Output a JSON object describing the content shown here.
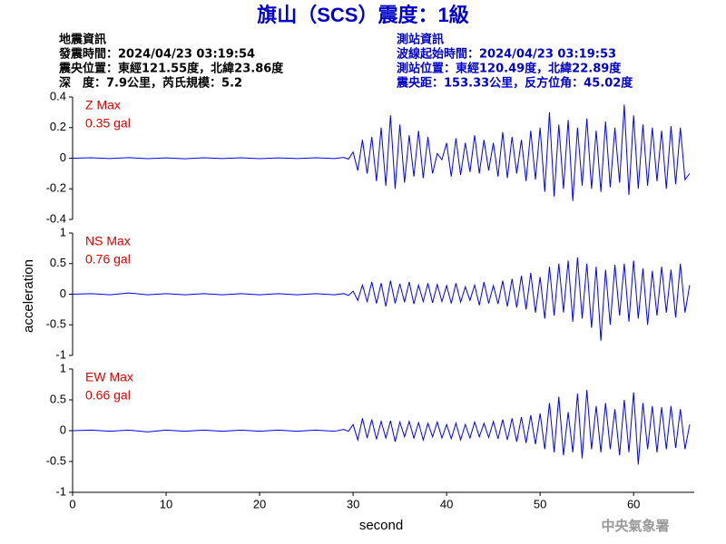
{
  "header": {
    "title": "旗山（SCS）震度：1級",
    "left": [
      "地震資訊",
      "發震時間：2024/04/23 03:19:54",
      "震央位置：東經121.55度，北緯23.86度",
      "深　度：7.9公里，芮氏規模：5.2"
    ],
    "right": [
      "測站資訊",
      "波線起始時間：2024/04/23 03:19:53",
      "測站位置：東經120.49度，北緯22.89度",
      "震央距：153.33公里，反方位角：45.02度"
    ]
  },
  "footer": "中央氣象署",
  "chart_data": [
    {
      "type": "line",
      "annotations": [
        "Z Max",
        "0.35 gal"
      ],
      "color": "#0000ff",
      "xlim": [
        0,
        66
      ],
      "ylim": [
        -0.4,
        0.4
      ],
      "yticks": [
        -0.4,
        -0.2,
        0,
        0.2,
        0.4
      ],
      "x": [
        0,
        2,
        4,
        6,
        8,
        10,
        12,
        14,
        16,
        18,
        20,
        22,
        24,
        26,
        28,
        29,
        29.5,
        30,
        30.5,
        31,
        31.5,
        32,
        32.5,
        33,
        33.5,
        34,
        34.5,
        35,
        35.5,
        36,
        36.5,
        37,
        37.5,
        38,
        38.5,
        39,
        39.5,
        40,
        40.5,
        41,
        41.5,
        42,
        42.5,
        43,
        43.5,
        44,
        44.5,
        45,
        45.5,
        46,
        46.5,
        47,
        47.5,
        48,
        48.5,
        49,
        49.5,
        50,
        50.5,
        51,
        51.5,
        52,
        52.5,
        53,
        53.5,
        54,
        54.5,
        55,
        55.5,
        56,
        56.5,
        57,
        57.5,
        58,
        58.5,
        59,
        59.5,
        60,
        60.5,
        61,
        61.5,
        62,
        62.5,
        63,
        63.5,
        64,
        64.5,
        65,
        65.5,
        66
      ],
      "values": [
        0,
        0.003,
        -0.002,
        0.004,
        -0.003,
        0.002,
        -0.004,
        0.003,
        -0.002,
        0.003,
        -0.003,
        0.002,
        -0.002,
        0.003,
        -0.002,
        0.005,
        -0.006,
        0.04,
        -0.08,
        0.12,
        -0.1,
        0.14,
        -0.15,
        0.2,
        -0.18,
        0.28,
        -0.2,
        0.22,
        -0.16,
        0.15,
        -0.12,
        0.18,
        -0.13,
        0.14,
        -0.1,
        0.03,
        -0.01,
        0.1,
        -0.12,
        0.13,
        -0.11,
        0.1,
        -0.09,
        0.15,
        -0.1,
        0.12,
        -0.08,
        0.1,
        -0.12,
        0.17,
        -0.13,
        0.14,
        -0.1,
        0.12,
        -0.15,
        0.18,
        -0.14,
        0.2,
        -0.22,
        0.3,
        -0.25,
        0.22,
        -0.2,
        0.25,
        -0.28,
        0.2,
        -0.18,
        0.26,
        -0.2,
        0.18,
        -0.22,
        0.24,
        -0.19,
        0.2,
        -0.16,
        0.35,
        -0.24,
        0.28,
        -0.2,
        0.22,
        -0.18,
        0.2,
        -0.15,
        0.18,
        -0.2,
        0.21,
        -0.17,
        0.2,
        -0.14,
        -0.1
      ]
    },
    {
      "type": "line",
      "annotations": [
        "NS Max",
        "0.76 gal"
      ],
      "color": "#0000ff",
      "ylabel": "acceleration",
      "xlim": [
        0,
        66
      ],
      "ylim": [
        -1,
        1
      ],
      "yticks": [
        -1,
        -0.5,
        0,
        0.5,
        1
      ],
      "x": [
        0,
        2,
        4,
        6,
        8,
        10,
        12,
        14,
        16,
        18,
        20,
        22,
        24,
        26,
        28,
        29,
        29.5,
        30,
        30.5,
        31,
        31.5,
        32,
        32.5,
        33,
        33.5,
        34,
        34.5,
        35,
        35.5,
        36,
        36.5,
        37,
        37.5,
        38,
        38.5,
        39,
        39.5,
        40,
        40.5,
        41,
        41.5,
        42,
        42.5,
        43,
        43.5,
        44,
        44.5,
        45,
        45.5,
        46,
        46.5,
        47,
        47.5,
        48,
        48.5,
        49,
        49.5,
        50,
        50.5,
        51,
        51.5,
        52,
        52.5,
        53,
        53.5,
        54,
        54.5,
        55,
        55.5,
        56,
        56.5,
        57,
        57.5,
        58,
        58.5,
        59,
        59.5,
        60,
        60.5,
        61,
        61.5,
        62,
        62.5,
        63,
        63.5,
        64,
        64.5,
        65,
        65.5,
        66
      ],
      "values": [
        0,
        0.01,
        -0.01,
        0.02,
        -0.01,
        0.01,
        -0.01,
        0.01,
        -0.01,
        0.01,
        -0.01,
        0.01,
        -0.01,
        0.01,
        -0.01,
        0.01,
        -0.02,
        0.05,
        -0.1,
        0.15,
        -0.12,
        0.2,
        -0.15,
        0.18,
        -0.2,
        0.22,
        -0.15,
        0.17,
        -0.13,
        0.2,
        -0.16,
        0.15,
        -0.12,
        0.18,
        -0.14,
        0.16,
        -0.12,
        0.14,
        -0.15,
        0.18,
        -0.13,
        0.12,
        -0.1,
        0.15,
        -0.18,
        0.2,
        -0.15,
        0.14,
        -0.16,
        0.22,
        -0.2,
        0.25,
        -0.22,
        0.3,
        -0.25,
        0.35,
        -0.3,
        0.28,
        -0.4,
        0.45,
        -0.35,
        0.5,
        -0.3,
        0.55,
        -0.45,
        0.6,
        -0.4,
        0.5,
        -0.55,
        0.45,
        -0.76,
        0.4,
        -0.5,
        0.48,
        -0.35,
        0.5,
        -0.45,
        0.55,
        -0.4,
        0.42,
        -0.5,
        0.38,
        -0.35,
        0.45,
        -0.3,
        0.4,
        -0.38,
        0.5,
        -0.3,
        0.15
      ]
    },
    {
      "type": "line",
      "annotations": [
        "EW Max",
        "0.66 gal"
      ],
      "color": "#0000ff",
      "xlabel": "second",
      "xlim": [
        0,
        66
      ],
      "ylim": [
        -1,
        1
      ],
      "yticks": [
        -1,
        -0.5,
        0,
        0.5,
        1
      ],
      "xticks": [
        0,
        10,
        20,
        30,
        40,
        50,
        60
      ],
      "x": [
        0,
        2,
        4,
        6,
        8,
        10,
        12,
        14,
        16,
        18,
        20,
        22,
        24,
        26,
        28,
        29,
        29.5,
        30,
        30.5,
        31,
        31.5,
        32,
        32.5,
        33,
        33.5,
        34,
        34.5,
        35,
        35.5,
        36,
        36.5,
        37,
        37.5,
        38,
        38.5,
        39,
        39.5,
        40,
        40.5,
        41,
        41.5,
        42,
        42.5,
        43,
        43.5,
        44,
        44.5,
        45,
        45.5,
        46,
        46.5,
        47,
        47.5,
        48,
        48.5,
        49,
        49.5,
        50,
        50.5,
        51,
        51.5,
        52,
        52.5,
        53,
        53.5,
        54,
        54.5,
        55,
        55.5,
        56,
        56.5,
        57,
        57.5,
        58,
        58.5,
        59,
        59.5,
        60,
        60.5,
        61,
        61.5,
        62,
        62.5,
        63,
        63.5,
        64,
        64.5,
        65,
        65.5,
        66
      ],
      "values": [
        0,
        0.01,
        -0.01,
        0.01,
        -0.02,
        0.01,
        -0.01,
        0.01,
        -0.01,
        0.01,
        -0.01,
        0.01,
        -0.01,
        0.01,
        -0.01,
        0.02,
        -0.01,
        0.1,
        -0.15,
        0.2,
        -0.12,
        0.18,
        -0.14,
        0.15,
        -0.12,
        0.16,
        -0.18,
        0.14,
        -0.1,
        0.15,
        -0.12,
        0.13,
        -0.15,
        0.12,
        -0.1,
        0.14,
        -0.12,
        0.1,
        -0.13,
        0.12,
        -0.15,
        0.1,
        -0.12,
        0.14,
        -0.1,
        0.12,
        -0.11,
        0.15,
        -0.13,
        0.18,
        -0.15,
        0.2,
        -0.18,
        0.22,
        -0.2,
        0.25,
        -0.22,
        0.28,
        -0.3,
        0.45,
        -0.35,
        0.55,
        -0.4,
        0.3,
        -0.35,
        0.6,
        -0.45,
        0.66,
        -0.3,
        0.4,
        -0.35,
        0.45,
        -0.3,
        0.35,
        -0.4,
        0.5,
        -0.35,
        0.62,
        -0.55,
        0.45,
        -0.3,
        0.4,
        -0.35,
        0.38,
        -0.3,
        0.4,
        -0.28,
        0.35,
        -0.3,
        0.1
      ]
    }
  ]
}
